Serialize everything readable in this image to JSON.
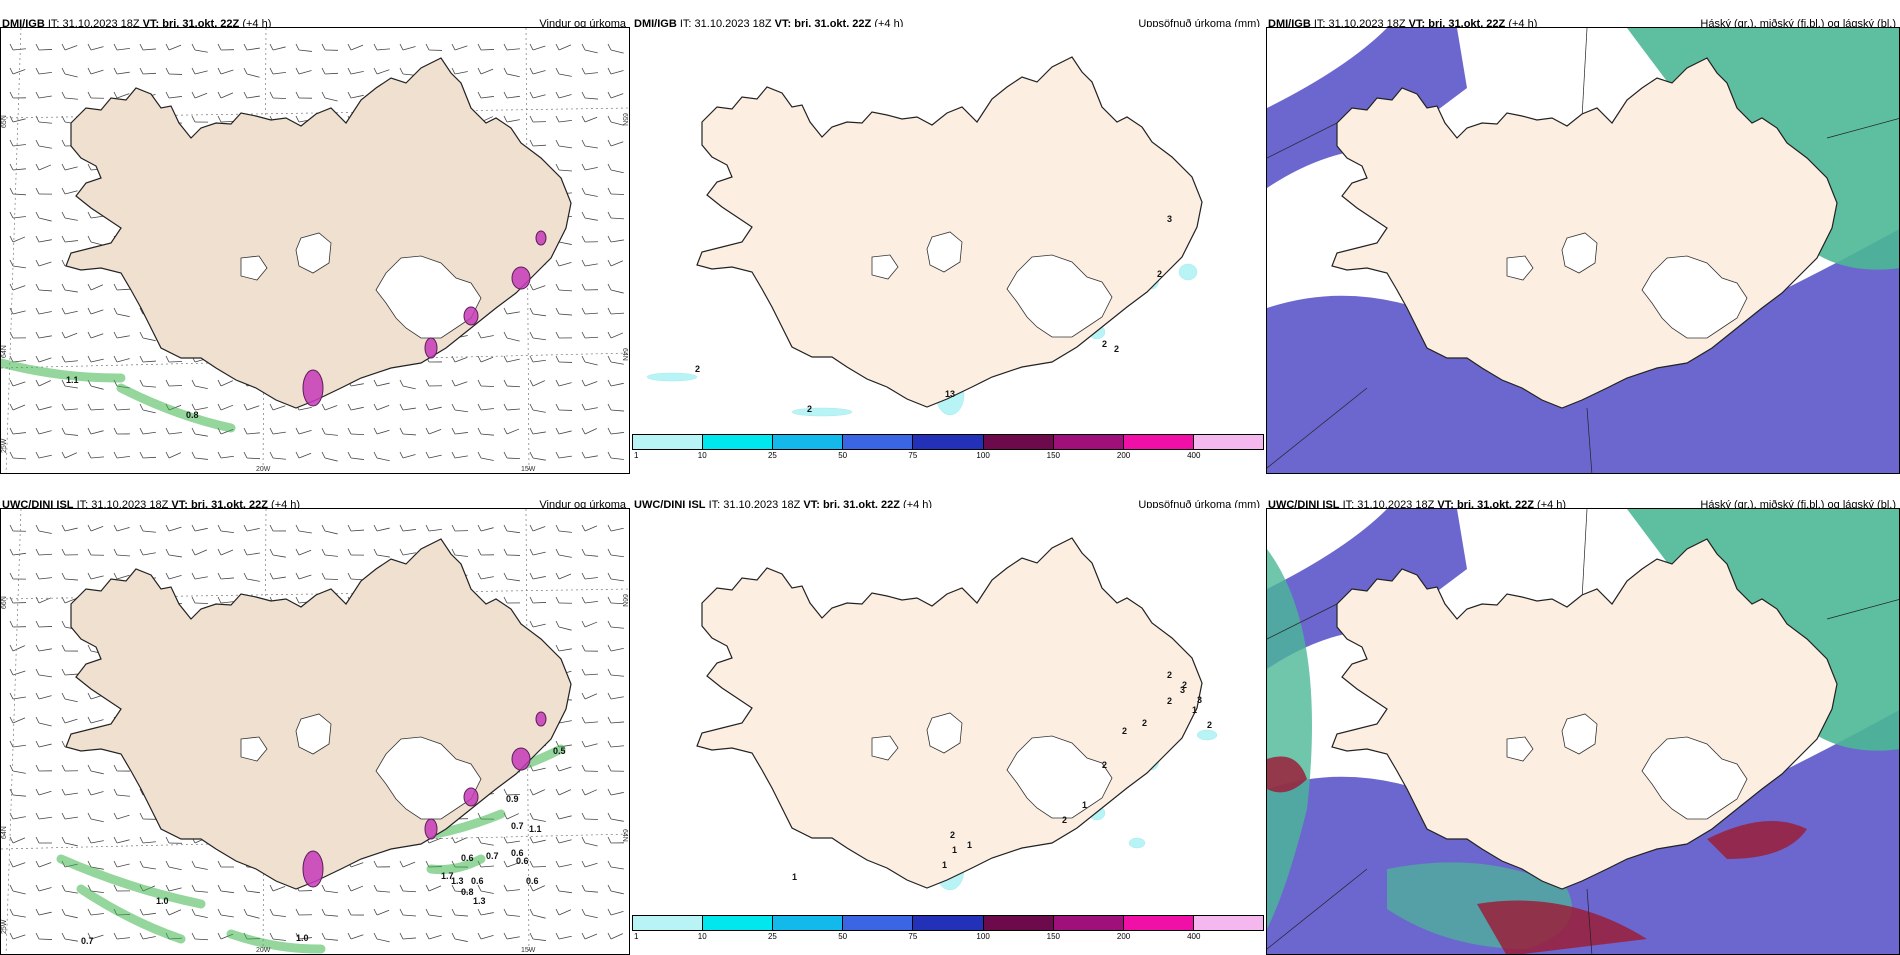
{
  "colors": {
    "land": "#fcefe2",
    "land_left": "#efe0d0",
    "ocean": "#ffffff",
    "precip_green": "#3cb44b",
    "high_cloud": "#4bb896",
    "mid_cloud": "#5b57c9",
    "low_cloud": "#9b1f3a"
  },
  "rows": [
    {
      "model": "DMI/IGB",
      "panels": [
        {
          "model": "DMI/IGB",
          "it_label": "IT:",
          "it_value": "31.10.2023 18Z",
          "vt_label": "VT:",
          "vt_value": "þri. 31.okt. 22Z",
          "lead": "(+4 h)",
          "right_title": "Vindur og úrkoma",
          "lat_labels": [
            "65N",
            "64N",
            "25W"
          ],
          "lon_labels": [
            "20W",
            "15W"
          ],
          "lat_right": [
            "65N",
            "64N"
          ],
          "values": [
            "1.1",
            "0.8"
          ]
        },
        {
          "model": "DMI/IGB",
          "it_label": "IT:",
          "it_value": "31.10.2023 18Z",
          "vt_label": "VT:",
          "vt_value": "þri. 31.okt. 22Z",
          "lead": "(+4 h)",
          "right_title": "Uppsöfnuð úrkoma (mm)",
          "values": [
            "3",
            "2",
            "2",
            "2",
            "2",
            "2",
            "13"
          ]
        },
        {
          "model": "DMI/IGB",
          "it_label": "IT:",
          "it_value": "31.10.2023 18Z",
          "vt_label": "VT:",
          "vt_value": "þri. 31.okt. 22Z",
          "lead": "(+4 h)",
          "right_title": "Háský (gr.), miðský (fj.bl.) og lágský (bl.)"
        }
      ]
    },
    {
      "model": "UWC/DINI ISL",
      "panels": [
        {
          "model": "UWC/DINI ISL",
          "it_label": "IT:",
          "it_value": "31.10.2023 18Z",
          "vt_label": "VT:",
          "vt_value": "þri. 31.okt. 22Z",
          "lead": "(+4 h)",
          "right_title": "Vindur og úrkoma",
          "lat_labels": [
            "66N",
            "64N",
            "25W"
          ],
          "lon_labels": [
            "20W",
            "15W"
          ],
          "lat_right": [
            "66N",
            "64N"
          ],
          "values": [
            "0.5",
            "0.9",
            "0.7",
            "1.1",
            "0.6",
            "0.6",
            "0.7",
            "0.6",
            "1.7",
            "0.6",
            "0.6",
            "0.8",
            "1.3",
            "1.3",
            "1.0",
            "0.7",
            "1.0"
          ]
        },
        {
          "model": "UWC/DINI ISL",
          "it_label": "IT:",
          "it_value": "31.10.2023 18Z",
          "vt_label": "VT:",
          "vt_value": "þri. 31.okt. 22Z",
          "lead": "(+4 h)",
          "right_title": "Uppsöfnuð úrkoma (mm)",
          "values": [
            "1",
            "2",
            "3",
            "1",
            "2",
            "2",
            "2",
            "2",
            "2",
            "1",
            "2",
            "2",
            "1",
            "1",
            "3",
            "2",
            "1"
          ]
        },
        {
          "model": "UWC/DINI ISL",
          "it_label": "IT:",
          "it_value": "31.10.2023 18Z",
          "vt_label": "VT:",
          "vt_value": "þri. 31.okt. 22Z",
          "lead": "(+4 h)",
          "right_title": "Háský (gr.), miðský (fj.bl.) og lágský (bl.)"
        }
      ]
    }
  ],
  "legend": {
    "ticks": [
      "1",
      "10",
      "25",
      "50",
      "75",
      "100",
      "150",
      "200",
      "400"
    ],
    "colors": [
      "#b8f4f6",
      "#00e8ee",
      "#12b9ea",
      "#3b66e3",
      "#2330b8",
      "#6c0a4c",
      "#a0107a",
      "#f010a8",
      "#f4b8ee"
    ]
  }
}
